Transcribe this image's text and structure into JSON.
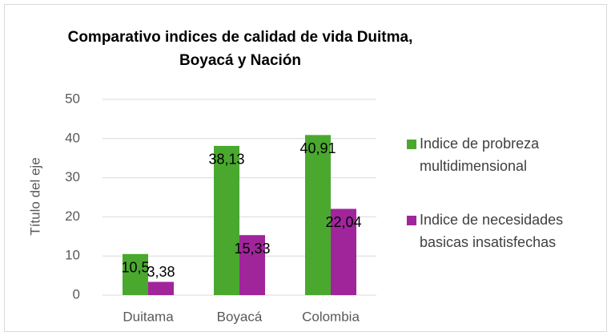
{
  "chart_data": {
    "type": "bar",
    "title": [
      "Comparativo indices de calidad de vida Duitma,",
      "Boyacá y Nación"
    ],
    "y_label": "Título del eje",
    "categories": [
      "Duitama",
      "Boyacá",
      "Colombia"
    ],
    "series": [
      {
        "name": "Indice de probreza multidimensional",
        "color": "#4aa82f",
        "values": [
          10.5,
          38.13,
          40.91
        ],
        "value_labels": [
          "10,5",
          "38,13",
          "40,91"
        ]
      },
      {
        "name": "Indice de necesidades basicas insatisfechas",
        "color": "#a0259b",
        "values": [
          3.38,
          15.33,
          22.04
        ],
        "value_labels": [
          "3,38",
          "15,33",
          "22,04"
        ]
      }
    ],
    "ylim": [
      0,
      50
    ],
    "yticks": [
      0,
      10,
      20,
      30,
      40,
      50
    ],
    "grid": true,
    "legend": "right"
  }
}
